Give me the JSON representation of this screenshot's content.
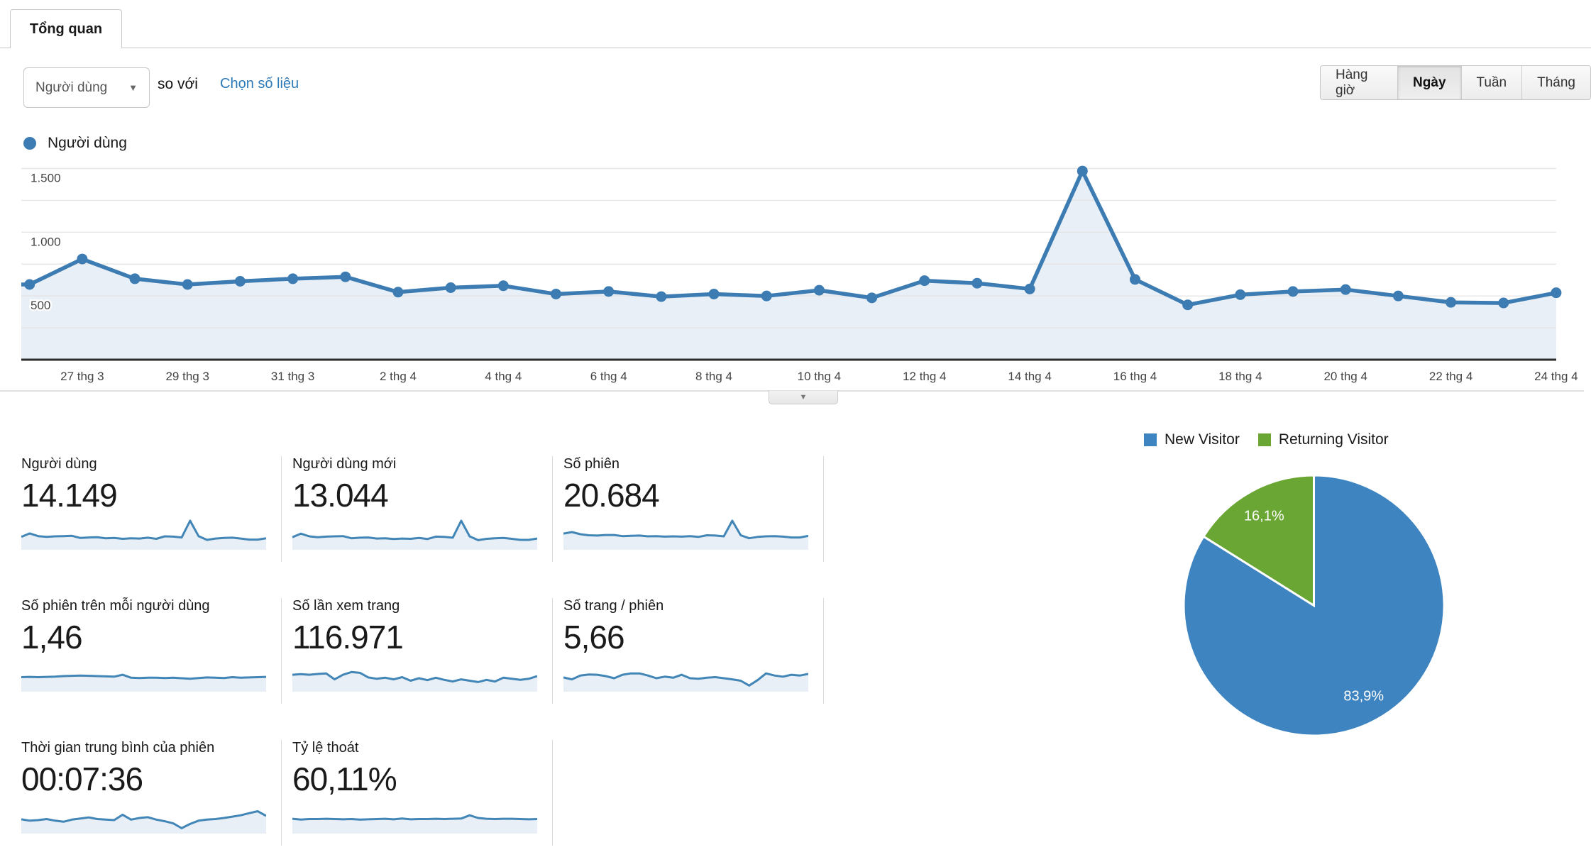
{
  "header": {
    "tab_label": "Tổng quan"
  },
  "controls": {
    "metric_dropdown_value": "Người dùng",
    "vs_label": "so với",
    "select_metric_link": "Chọn số liệu",
    "granularity_options": [
      "Hàng giờ",
      "Ngày",
      "Tuần",
      "Tháng"
    ],
    "granularity_selected": "Ngày"
  },
  "colors": {
    "line_blue": "#3c7cb2",
    "area_fill": "#e9eff6",
    "pie_blue": "#3e84c0",
    "pie_green": "#6aa634",
    "link_blue": "#2d7ab8"
  },
  "chart_data": [
    {
      "type": "line",
      "series": [
        {
          "name": "Người dùng",
          "values": [
            590,
            790,
            635,
            590,
            615,
            635,
            650,
            530,
            565,
            580,
            515,
            535,
            495,
            515,
            500,
            545,
            485,
            620,
            600,
            555,
            1480,
            630,
            430,
            510,
            535,
            550,
            500,
            450,
            445,
            525
          ]
        }
      ],
      "x": [
        "26 thg 3",
        "27 thg 3",
        "28 thg 3",
        "29 thg 3",
        "30 thg 3",
        "31 thg 3",
        "1 thg 4",
        "2 thg 4",
        "3 thg 4",
        "4 thg 4",
        "5 thg 4",
        "6 thg 4",
        "7 thg 4",
        "8 thg 4",
        "9 thg 4",
        "10 thg 4",
        "11 thg 4",
        "12 thg 4",
        "13 thg 4",
        "14 thg 4",
        "15 thg 4",
        "16 thg 4",
        "17 thg 4",
        "18 thg 4",
        "19 thg 4",
        "20 thg 4",
        "21 thg 4",
        "22 thg 4",
        "23 thg 4",
        "24 thg 4"
      ],
      "x_tick_labels": [
        "27 thg 3",
        "29 thg 3",
        "31 thg 3",
        "2 thg 4",
        "4 thg 4",
        "6 thg 4",
        "8 thg 4",
        "10 thg 4",
        "12 thg 4",
        "14 thg 4",
        "16 thg 4",
        "18 thg 4",
        "20 thg 4",
        "22 thg 4",
        "24 thg 4"
      ],
      "y_ticks": [
        500,
        1000,
        1500
      ],
      "y_tick_labels": [
        "500",
        "1.000",
        "1.500"
      ],
      "ylim": [
        0,
        1570
      ],
      "grid_step": 250,
      "grid": true,
      "legend_position": "top-left"
    },
    {
      "type": "pie",
      "labels": [
        "New Visitor",
        "Returning Visitor"
      ],
      "values": [
        83.9,
        16.1
      ],
      "value_labels": [
        "83,9%",
        "16,1%"
      ],
      "colors": [
        "#3e84c0",
        "#6aa634"
      ],
      "legend_position": "top"
    }
  ],
  "metric_cards": [
    {
      "label": "Người dùng",
      "value": "14.149",
      "spark": [
        0.4,
        0.53,
        0.43,
        0.4,
        0.42,
        0.43,
        0.44,
        0.36,
        0.38,
        0.39,
        0.35,
        0.36,
        0.33,
        0.35,
        0.34,
        0.37,
        0.33,
        0.42,
        0.41,
        0.38,
        1.0,
        0.43,
        0.29,
        0.34,
        0.36,
        0.37,
        0.34,
        0.3,
        0.3,
        0.35
      ]
    },
    {
      "label": "Người dùng mới",
      "value": "13.044",
      "spark": [
        0.39,
        0.52,
        0.42,
        0.39,
        0.41,
        0.42,
        0.43,
        0.35,
        0.37,
        0.38,
        0.34,
        0.35,
        0.32,
        0.34,
        0.33,
        0.36,
        0.32,
        0.41,
        0.4,
        0.37,
        1.0,
        0.42,
        0.28,
        0.33,
        0.35,
        0.36,
        0.33,
        0.29,
        0.29,
        0.34
      ]
    },
    {
      "label": "Số phiên",
      "value": "20.684",
      "spark": [
        0.52,
        0.58,
        0.5,
        0.46,
        0.45,
        0.47,
        0.47,
        0.43,
        0.44,
        0.45,
        0.42,
        0.43,
        0.41,
        0.42,
        0.41,
        0.43,
        0.4,
        0.46,
        0.45,
        0.42,
        1.0,
        0.46,
        0.35,
        0.4,
        0.42,
        0.43,
        0.41,
        0.38,
        0.38,
        0.44
      ]
    },
    {
      "label": "Số phiên trên mỗi người dùng",
      "value": "1,46",
      "spark": [
        0.46,
        0.47,
        0.46,
        0.47,
        0.48,
        0.5,
        0.51,
        0.52,
        0.51,
        0.5,
        0.49,
        0.48,
        0.55,
        0.44,
        0.43,
        0.44,
        0.44,
        0.43,
        0.44,
        0.42,
        0.4,
        0.43,
        0.45,
        0.44,
        0.43,
        0.46,
        0.44,
        0.45,
        0.46,
        0.47
      ]
    },
    {
      "label": "Số lần xem trang",
      "value": "116.971",
      "spark": [
        0.55,
        0.57,
        0.55,
        0.58,
        0.6,
        0.38,
        0.55,
        0.65,
        0.62,
        0.45,
        0.4,
        0.44,
        0.38,
        0.46,
        0.33,
        0.42,
        0.35,
        0.44,
        0.36,
        0.3,
        0.38,
        0.33,
        0.28,
        0.36,
        0.3,
        0.44,
        0.4,
        0.36,
        0.4,
        0.5
      ]
    },
    {
      "label": "Số trang / phiên",
      "value": "5,66",
      "spark": [
        0.45,
        0.38,
        0.52,
        0.56,
        0.55,
        0.5,
        0.42,
        0.55,
        0.6,
        0.6,
        0.52,
        0.42,
        0.48,
        0.44,
        0.55,
        0.42,
        0.4,
        0.44,
        0.46,
        0.42,
        0.38,
        0.33,
        0.15,
        0.35,
        0.6,
        0.52,
        0.48,
        0.55,
        0.52,
        0.58
      ]
    },
    {
      "label": "Thời gian trung bình của phiên",
      "value": "00:07:36",
      "spark": [
        0.45,
        0.4,
        0.42,
        0.46,
        0.4,
        0.36,
        0.44,
        0.48,
        0.52,
        0.46,
        0.44,
        0.42,
        0.62,
        0.44,
        0.5,
        0.53,
        0.44,
        0.38,
        0.3,
        0.12,
        0.28,
        0.4,
        0.44,
        0.46,
        0.5,
        0.55,
        0.6,
        0.68,
        0.75,
        0.58
      ]
    },
    {
      "label": "Tỷ lệ thoát",
      "value": "60,11%",
      "spark": [
        0.47,
        0.44,
        0.46,
        0.46,
        0.47,
        0.46,
        0.45,
        0.46,
        0.44,
        0.45,
        0.46,
        0.47,
        0.45,
        0.48,
        0.45,
        0.46,
        0.46,
        0.47,
        0.46,
        0.47,
        0.48,
        0.6,
        0.5,
        0.47,
        0.46,
        0.47,
        0.47,
        0.46,
        0.45,
        0.46
      ]
    }
  ]
}
